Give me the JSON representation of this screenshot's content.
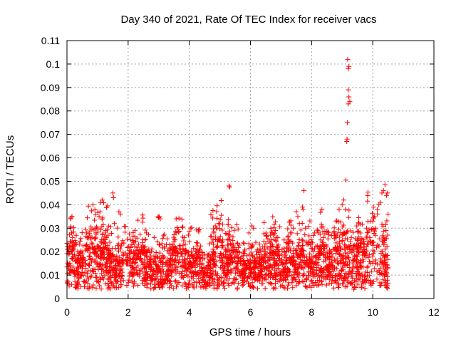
{
  "chart_data": {
    "type": "scatter",
    "title": "Day 340 of 2021, Rate Of TEC Index for receiver vacs",
    "xlabel": "GPS time / hours",
    "ylabel": "ROTI / TECUs",
    "xlim": [
      0,
      12
    ],
    "ylim": [
      0,
      0.11
    ],
    "x_ticks": [
      0,
      2,
      4,
      6,
      8,
      10,
      12
    ],
    "x_tick_labels": [
      "0",
      "2",
      "4",
      "6",
      "8",
      "10",
      "12"
    ],
    "y_ticks": [
      0,
      0.01,
      0.02,
      0.03,
      0.04,
      0.05,
      0.06,
      0.07,
      0.08,
      0.09,
      0.1,
      0.11
    ],
    "y_tick_labels": [
      "0",
      "0.01",
      "0.02",
      "0.03",
      "0.04",
      "0.05",
      "0.06",
      "0.07",
      "0.08",
      "0.09",
      "0.1",
      "0.11"
    ],
    "grid": true,
    "marker": "plus",
    "color": "#ff0000",
    "data_extent_hours": [
      0,
      10.5
    ],
    "series": [
      {
        "name": "ROTI",
        "points": [
          [
            0.05,
            0.02
          ],
          [
            0.08,
            0.022
          ],
          [
            0.1,
            0.03
          ],
          [
            0.12,
            0.034
          ],
          [
            0.15,
            0.028
          ],
          [
            0.18,
            0.026
          ],
          [
            0.2,
            0.018
          ],
          [
            0.25,
            0.012
          ],
          [
            0.85,
            0.04
          ],
          [
            0.95,
            0.028
          ],
          [
            1.0,
            0.03
          ],
          [
            1.05,
            0.035
          ],
          [
            1.08,
            0.037
          ],
          [
            1.1,
            0.041
          ],
          [
            1.15,
            0.042
          ],
          [
            1.2,
            0.025
          ],
          [
            1.5,
            0.045
          ],
          [
            1.52,
            0.043
          ],
          [
            1.55,
            0.032
          ],
          [
            1.7,
            0.037
          ],
          [
            1.75,
            0.036
          ],
          [
            1.3,
            0.026
          ],
          [
            1.4,
            0.024
          ],
          [
            2.3,
            0.021
          ],
          [
            2.5,
            0.022
          ],
          [
            2.6,
            0.028
          ],
          [
            2.85,
            0.026
          ],
          [
            2.98,
            0.035
          ],
          [
            3.0,
            0.0345
          ],
          [
            3.02,
            0.035
          ],
          [
            3.05,
            0.034
          ],
          [
            3.5,
            0.02
          ],
          [
            3.8,
            0.021
          ],
          [
            4.05,
            0.03
          ],
          [
            4.2,
            0.02
          ],
          [
            4.5,
            0.019
          ],
          [
            4.8,
            0.028
          ],
          [
            4.85,
            0.031
          ],
          [
            4.9,
            0.03
          ],
          [
            4.95,
            0.025
          ],
          [
            5.1,
            0.022
          ],
          [
            5.25,
            0.025
          ],
          [
            5.3,
            0.048
          ],
          [
            5.32,
            0.0475
          ],
          [
            5.5,
            0.018
          ],
          [
            5.8,
            0.02
          ],
          [
            5.95,
            0.028
          ],
          [
            6.05,
            0.031
          ],
          [
            6.1,
            0.03
          ],
          [
            6.4,
            0.022
          ],
          [
            6.65,
            0.027
          ],
          [
            6.9,
            0.02
          ],
          [
            7.1,
            0.025
          ],
          [
            7.3,
            0.028
          ],
          [
            7.4,
            0.03
          ],
          [
            7.5,
            0.037
          ],
          [
            7.55,
            0.035
          ],
          [
            7.6,
            0.032
          ],
          [
            7.7,
            0.039
          ],
          [
            7.72,
            0.038
          ],
          [
            7.75,
            0.046
          ],
          [
            7.8,
            0.03
          ],
          [
            8.1,
            0.028
          ],
          [
            8.3,
            0.025
          ],
          [
            8.5,
            0.022
          ],
          [
            8.7,
            0.021
          ],
          [
            8.8,
            0.033
          ],
          [
            8.9,
            0.038
          ],
          [
            9.0,
            0.04
          ],
          [
            9.05,
            0.042
          ],
          [
            9.1,
            0.038
          ],
          [
            9.12,
            0.0505
          ],
          [
            9.15,
            0.067
          ],
          [
            9.16,
            0.068
          ],
          [
            9.17,
            0.075
          ],
          [
            9.2,
            0.089
          ],
          [
            9.22,
            0.086
          ],
          [
            9.25,
            0.084
          ],
          [
            9.2,
            0.083
          ],
          [
            9.2,
            0.098
          ],
          [
            9.22,
            0.099
          ],
          [
            9.18,
            0.102
          ],
          [
            9.25,
            0.02
          ],
          [
            9.3,
            0.026
          ],
          [
            9.5,
            0.025
          ],
          [
            9.6,
            0.022
          ],
          [
            9.8,
            0.03
          ],
          [
            9.9,
            0.026
          ],
          [
            10.0,
            0.033
          ],
          [
            10.05,
            0.035
          ],
          [
            10.1,
            0.03
          ],
          [
            10.15,
            0.038
          ],
          [
            10.2,
            0.04
          ],
          [
            10.25,
            0.041
          ],
          [
            10.3,
            0.045
          ],
          [
            10.35,
            0.046
          ],
          [
            10.4,
            0.0485
          ],
          [
            10.45,
            0.044
          ],
          [
            10.48,
            0.045
          ],
          [
            10.5,
            0.036
          ]
        ]
      }
    ]
  }
}
